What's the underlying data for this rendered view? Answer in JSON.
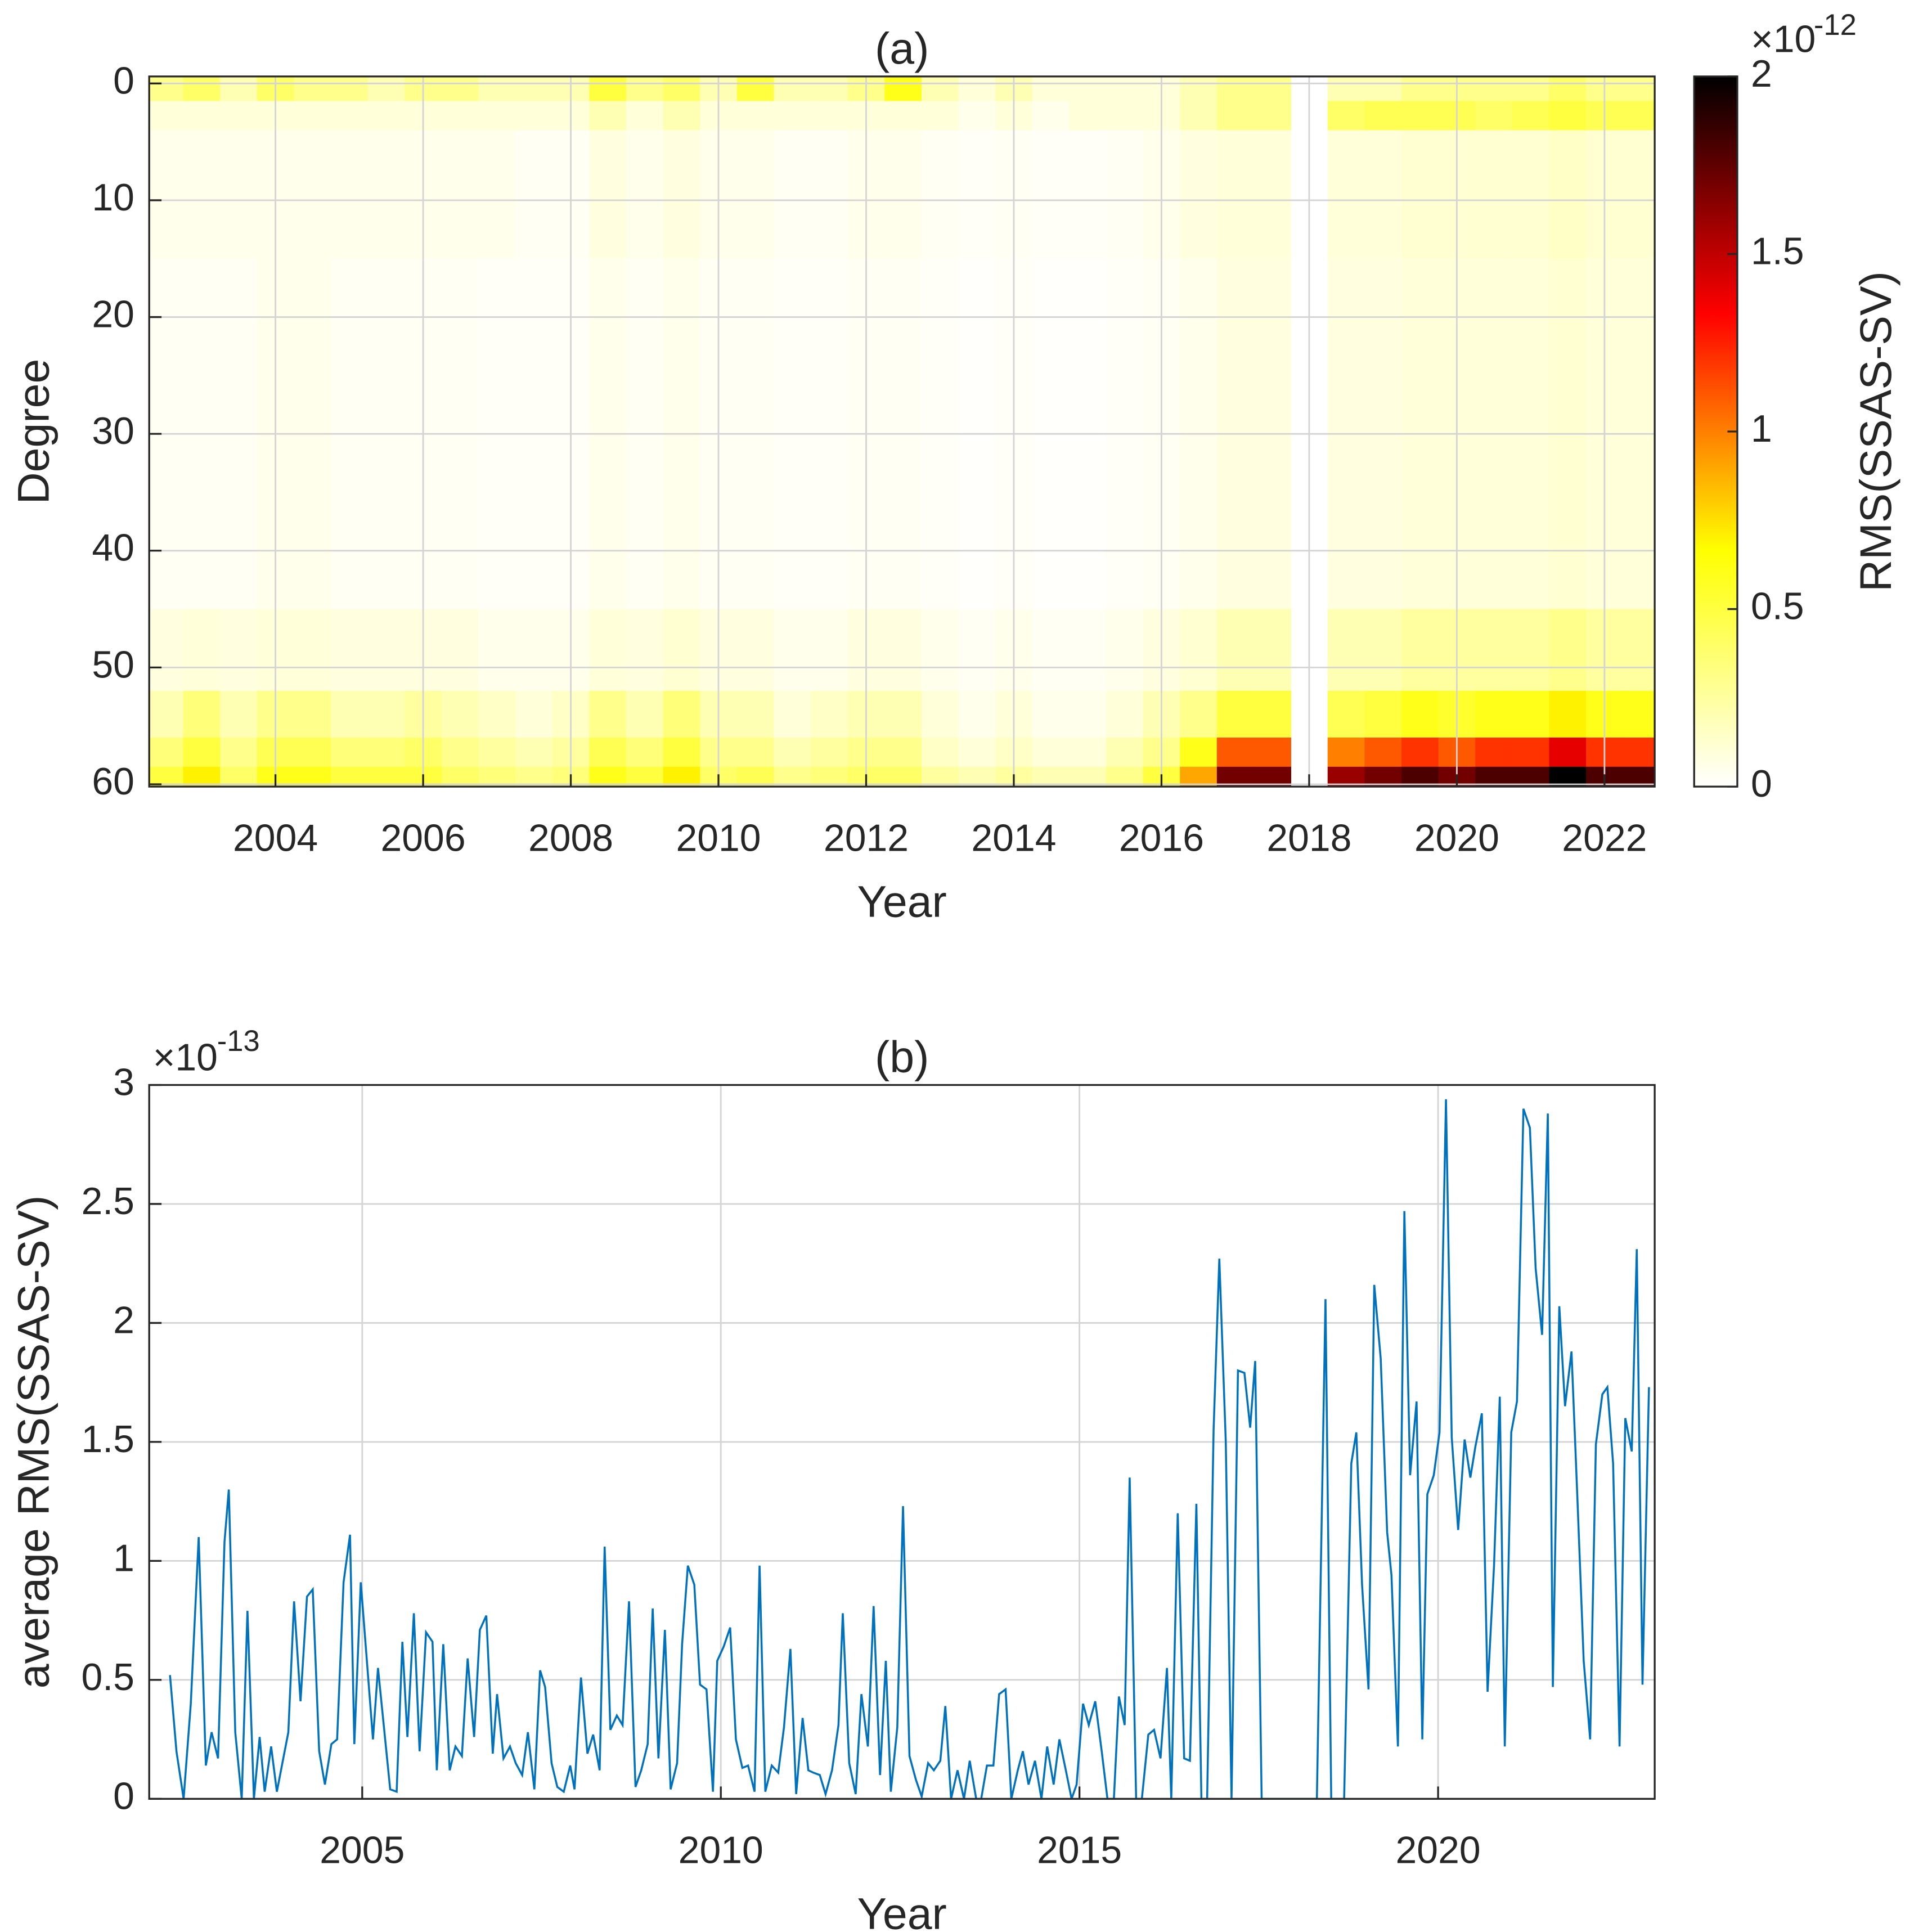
{
  "chart_data": [
    {
      "type": "heatmap",
      "title": "(a)",
      "xlabel": "Year",
      "ylabel": "Degree",
      "colorbar_label": "RMS(SSAS-SV)",
      "colorbar_multiplier": {
        "base": "×10",
        "exponent": "-12"
      },
      "x_bins": [
        2002.25,
        2002.75,
        2003.25,
        2003.75,
        2004.25,
        2004.75,
        2005.25,
        2005.75,
        2006.25,
        2006.75,
        2007.25,
        2007.75,
        2008.25,
        2008.75,
        2009.25,
        2009.75,
        2010.25,
        2010.75,
        2011.25,
        2011.75,
        2012.25,
        2012.75,
        2013.25,
        2013.75,
        2014.25,
        2014.75,
        2015.25,
        2015.75,
        2016.25,
        2016.75,
        2017.25,
        2017.75,
        2018.25,
        2018.75,
        2019.25,
        2019.75,
        2020.25,
        2020.75,
        2021.25,
        2021.75,
        2022.25,
        2022.75
      ],
      "y_bins": [
        -0.6,
        1.5,
        4,
        15,
        45,
        52,
        56,
        58.5,
        60.2
      ],
      "z": [
        [
          0.3,
          0.4,
          0.2,
          0.4,
          0.3,
          0.3,
          0.2,
          0.3,
          0.3,
          0.2,
          0.2,
          0.2,
          0.5,
          0.3,
          0.4,
          0.2,
          0.5,
          0.2,
          0.2,
          0.3,
          0.6,
          0.2,
          0.1,
          0.2,
          0.1,
          0.1,
          0.1,
          0.1,
          0.2,
          0.3,
          0.3,
          null,
          0.2,
          0.2,
          0.3,
          0.3,
          0.3,
          0.3,
          0.4,
          0.3,
          0.3
        ],
        [
          0.1,
          0.1,
          0.1,
          0.1,
          0.1,
          0.1,
          0.1,
          0.1,
          0.1,
          0.1,
          0.1,
          0.1,
          0.2,
          0.1,
          0.2,
          0.1,
          0.1,
          0.1,
          0.1,
          0.1,
          0.1,
          0.1,
          0.05,
          0.1,
          0.05,
          0.1,
          0.1,
          0.1,
          0.2,
          0.3,
          0.3,
          null,
          0.4,
          0.45,
          0.45,
          0.45,
          0.4,
          0.45,
          0.5,
          0.45,
          0.45
        ],
        [
          0.05,
          0.05,
          0.05,
          0.05,
          0.05,
          0.05,
          0.05,
          0.05,
          0.05,
          0.05,
          0.03,
          0.03,
          0.08,
          0.05,
          0.08,
          0.05,
          0.05,
          0.03,
          0.03,
          0.05,
          0.05,
          0.03,
          0.02,
          0.03,
          0.02,
          0.02,
          0.03,
          0.05,
          0.08,
          0.1,
          0.1,
          null,
          0.1,
          0.1,
          0.12,
          0.12,
          0.12,
          0.12,
          0.15,
          0.12,
          0.12
        ],
        [
          0.03,
          0.03,
          0.03,
          0.05,
          0.05,
          0.03,
          0.03,
          0.03,
          0.03,
          0.02,
          0.02,
          0.02,
          0.05,
          0.03,
          0.05,
          0.03,
          0.03,
          0.02,
          0.02,
          0.03,
          0.03,
          0.02,
          0.01,
          0.02,
          0.01,
          0.01,
          0.02,
          0.03,
          0.05,
          0.08,
          0.08,
          null,
          0.08,
          0.08,
          0.1,
          0.1,
          0.1,
          0.1,
          0.12,
          0.1,
          0.1
        ],
        [
          0.08,
          0.1,
          0.08,
          0.1,
          0.1,
          0.08,
          0.08,
          0.08,
          0.08,
          0.05,
          0.05,
          0.05,
          0.1,
          0.08,
          0.12,
          0.08,
          0.08,
          0.05,
          0.05,
          0.08,
          0.08,
          0.05,
          0.03,
          0.05,
          0.03,
          0.03,
          0.05,
          0.08,
          0.12,
          0.2,
          0.2,
          null,
          0.2,
          0.2,
          0.25,
          0.25,
          0.25,
          0.25,
          0.3,
          0.25,
          0.25
        ],
        [
          0.2,
          0.35,
          0.2,
          0.3,
          0.3,
          0.2,
          0.2,
          0.25,
          0.2,
          0.15,
          0.1,
          0.15,
          0.3,
          0.2,
          0.35,
          0.2,
          0.2,
          0.1,
          0.15,
          0.2,
          0.2,
          0.1,
          0.05,
          0.1,
          0.05,
          0.05,
          0.1,
          0.2,
          0.3,
          0.5,
          0.5,
          null,
          0.45,
          0.5,
          0.6,
          0.55,
          0.6,
          0.6,
          0.7,
          0.6,
          0.6
        ],
        [
          0.35,
          0.5,
          0.3,
          0.45,
          0.45,
          0.35,
          0.35,
          0.4,
          0.3,
          0.25,
          0.2,
          0.25,
          0.45,
          0.35,
          0.5,
          0.3,
          0.3,
          0.2,
          0.25,
          0.3,
          0.3,
          0.15,
          0.1,
          0.15,
          0.1,
          0.1,
          0.2,
          0.3,
          0.6,
          1.1,
          1.1,
          null,
          1.0,
          1.1,
          1.2,
          1.1,
          1.2,
          1.2,
          1.4,
          1.2,
          1.2
        ],
        [
          0.5,
          0.7,
          0.4,
          0.6,
          0.6,
          0.5,
          0.5,
          0.5,
          0.4,
          0.35,
          0.3,
          0.35,
          0.6,
          0.5,
          0.7,
          0.4,
          0.45,
          0.3,
          0.35,
          0.4,
          0.4,
          0.25,
          0.2,
          0.25,
          0.2,
          0.2,
          0.3,
          0.5,
          0.9,
          1.7,
          1.7,
          null,
          1.6,
          1.7,
          1.8,
          1.7,
          1.8,
          1.8,
          2.0,
          1.8,
          1.8
        ]
      ],
      "xlim": [
        2002.29,
        2022.68
      ],
      "ylim": [
        -0.6,
        60.2
      ],
      "y_reversed": true,
      "xticks": [
        2004,
        2006,
        2008,
        2010,
        2012,
        2014,
        2016,
        2018,
        2020,
        2022
      ],
      "yticks": [
        0,
        10,
        20,
        30,
        40,
        50,
        60
      ],
      "clim": [
        0,
        2
      ],
      "cticks": [
        0,
        0.5,
        1,
        1.5,
        2
      ],
      "colormap": [
        "#ffffff",
        "#ffff00",
        "#ff0000",
        "#000000"
      ],
      "grid": true
    },
    {
      "type": "line",
      "title": "(b)",
      "xlabel": "Year",
      "ylabel": "average RMS(SSAS-SV)",
      "y_multiplier": {
        "base": "×10",
        "exponent": "-13"
      },
      "color": "#0072bd",
      "x": [
        2002.32,
        2002.41,
        2002.51,
        2002.61,
        2002.72,
        2002.82,
        2002.9,
        2002.99,
        2003.08,
        2003.14,
        2003.23,
        2003.32,
        2003.4,
        2003.49,
        2003.57,
        2003.64,
        2003.73,
        2003.81,
        2003.97,
        2004.05,
        2004.14,
        2004.23,
        2004.31,
        2004.4,
        2004.48,
        2004.57,
        2004.65,
        2004.74,
        2004.83,
        2004.89,
        2004.98,
        2005.15,
        2005.22,
        2005.39,
        2005.48,
        2005.56,
        2005.63,
        2005.72,
        2005.8,
        2005.89,
        2005.98,
        2006.04,
        2006.13,
        2006.22,
        2006.3,
        2006.39,
        2006.47,
        2006.56,
        2006.64,
        2006.73,
        2006.82,
        2006.88,
        2006.97,
        2007.06,
        2007.14,
        2007.23,
        2007.31,
        2007.4,
        2007.48,
        2007.55,
        2007.64,
        2007.72,
        2007.81,
        2007.9,
        2007.96,
        2008.05,
        2008.14,
        2008.22,
        2008.31,
        2008.38,
        2008.46,
        2008.55,
        2008.63,
        2008.72,
        2008.81,
        2008.89,
        2008.98,
        2009.05,
        2009.13,
        2009.22,
        2009.3,
        2009.39,
        2009.46,
        2009.54,
        2009.63,
        2009.71,
        2009.8,
        2009.89,
        2009.95,
        2010.04,
        2010.13,
        2010.21,
        2010.3,
        2010.38,
        2010.47,
        2010.54,
        2010.62,
        2010.71,
        2010.8,
        2010.88,
        2010.97,
        2011.05,
        2011.14,
        2011.22,
        2011.29,
        2011.38,
        2011.46,
        2011.55,
        2011.64,
        2011.7,
        2011.79,
        2011.88,
        2011.96,
        2012.05,
        2012.13,
        2012.22,
        2012.3,
        2012.37,
        2012.46,
        2012.54,
        2012.63,
        2012.72,
        2012.8,
        2012.89,
        2012.97,
        2013.06,
        2013.13,
        2013.21,
        2013.3,
        2013.39,
        2013.47,
        2013.56,
        2013.63,
        2013.71,
        2013.8,
        2013.88,
        2013.97,
        2014.05,
        2014.14,
        2014.21,
        2014.29,
        2014.38,
        2014.47,
        2014.55,
        2014.64,
        2014.72,
        2014.81,
        2014.89,
        2014.96,
        2015.05,
        2015.13,
        2015.22,
        2015.31,
        2015.39,
        2015.48,
        2015.55,
        2015.63,
        2015.7,
        2015.79,
        2015.87,
        2015.96,
        2016.04,
        2016.13,
        2016.22,
        2016.28,
        2016.37,
        2016.46,
        2016.54,
        2016.63,
        2016.7,
        2016.78,
        2016.87,
        2016.95,
        2017.04,
        2017.12,
        2017.21,
        2017.3,
        2017.38,
        2017.45,
        2017.54,
        2018.31,
        2018.43,
        2018.51,
        2018.6,
        2018.69,
        2018.79,
        2018.86,
        2018.94,
        2019.03,
        2019.11,
        2019.2,
        2019.29,
        2019.35,
        2019.44,
        2019.53,
        2019.61,
        2019.7,
        2019.78,
        2019.85,
        2019.94,
        2020.02,
        2020.11,
        2020.19,
        2020.28,
        2020.37,
        2020.45,
        2020.52,
        2020.61,
        2020.69,
        2020.78,
        2020.86,
        2020.93,
        2021.02,
        2021.1,
        2021.19,
        2021.28,
        2021.36,
        2021.45,
        2021.53,
        2021.6,
        2021.69,
        2021.77,
        2021.86,
        2021.94,
        2022.03,
        2022.12,
        2022.2,
        2022.29,
        2022.36,
        2022.44,
        2022.53,
        2022.61,
        2022.7,
        2022.77,
        2022.85,
        2022.94
      ],
      "values": [
        0.52,
        0.2,
        0,
        0.4,
        1.1,
        0.14,
        0.28,
        0.17,
        1.08,
        1.3,
        0.28,
        0,
        0.79,
        0,
        0.26,
        0.03,
        0.22,
        0.03,
        0.28,
        0.83,
        0.41,
        0.85,
        0.88,
        0.2,
        0.06,
        0.23,
        0.25,
        0.91,
        1.11,
        0.23,
        0.91,
        0.25,
        0.55,
        0.04,
        0.03,
        0.66,
        0.26,
        0.78,
        0.2,
        0.7,
        0.66,
        0.12,
        0.65,
        0.12,
        0.22,
        0.18,
        0.59,
        0.26,
        0.71,
        0.77,
        0.19,
        0.44,
        0.17,
        0.22,
        0.15,
        0.1,
        0.28,
        0.04,
        0.54,
        0.47,
        0.15,
        0.05,
        0.03,
        0.14,
        0.04,
        0.51,
        0.19,
        0.27,
        0.12,
        1.06,
        0.29,
        0.35,
        0.31,
        0.83,
        0.05,
        0.12,
        0.23,
        0.8,
        0.17,
        0.71,
        0.04,
        0.15,
        0.65,
        0.98,
        0.9,
        0.48,
        0.46,
        0.03,
        0.58,
        0.64,
        0.72,
        0.25,
        0.13,
        0.14,
        0.03,
        0.98,
        0.03,
        0.14,
        0.11,
        0.3,
        0.63,
        0.02,
        0.34,
        0.12,
        0.11,
        0.1,
        0.02,
        0.12,
        0.31,
        0.78,
        0.15,
        0.02,
        0.44,
        0.22,
        0.81,
        0.1,
        0.58,
        0.03,
        0.3,
        1.23,
        0.18,
        0.08,
        0.01,
        0.15,
        0.12,
        0.16,
        0.39,
        0,
        0.12,
        0,
        0.16,
        0,
        0,
        0.14,
        0.14,
        0.44,
        0.46,
        0,
        0.12,
        0.2,
        0.06,
        0.16,
        0,
        0.22,
        0.06,
        0.25,
        0.12,
        0,
        0.06,
        0.4,
        0.31,
        0.41,
        0.2,
        0,
        0,
        0.43,
        0.31,
        1.35,
        0,
        0,
        0.27,
        0.29,
        0.17,
        0.55,
        0,
        1.2,
        0.17,
        0.16,
        1.24,
        0,
        0,
        1.55,
        2.27,
        1.5,
        0,
        1.8,
        1.79,
        1.56,
        1.84,
        0,
        0,
        2.1,
        0,
        0,
        0,
        1.41,
        1.54,
        0.9,
        0.46,
        2.16,
        1.85,
        1.12,
        0.94,
        0.22,
        2.47,
        1.36,
        1.67,
        0.25,
        1.28,
        1.36,
        1.54,
        2.94,
        1.52,
        1.13,
        1.51,
        1.35,
        1.48,
        1.62,
        0.45,
        0.98,
        1.69,
        0.22,
        1.54,
        1.67,
        2.9,
        2.82,
        2.23,
        1.95,
        2.88,
        0.47,
        2.07,
        1.65,
        1.88,
        1.28,
        0.58,
        0.25,
        1.49,
        1.7,
        1.73,
        1.41,
        0.22,
        1.6,
        1.46,
        2.31,
        0.48,
        1.73
      ],
      "xlim": [
        2002.03,
        2023.02
      ],
      "ylim": [
        0,
        3
      ],
      "xticks": [
        2005,
        2010,
        2015,
        2020
      ],
      "yticks": [
        0,
        0.5,
        1,
        1.5,
        2,
        2.5,
        3
      ],
      "grid": true
    }
  ]
}
